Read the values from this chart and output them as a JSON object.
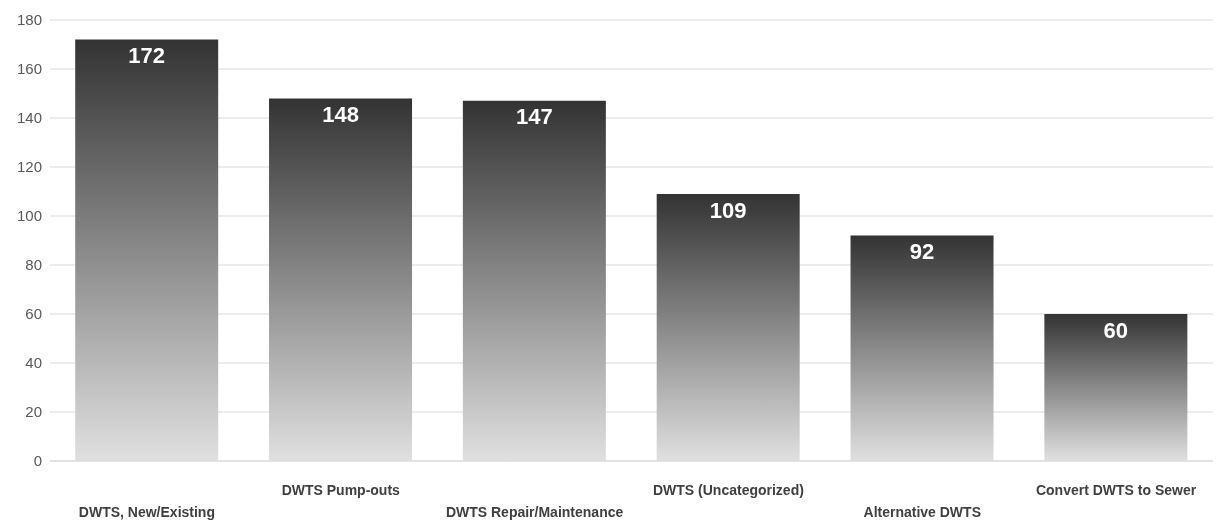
{
  "chart_data": {
    "type": "bar",
    "categories": [
      "DWTS, New/Existing",
      "DWTS Pump-outs",
      "DWTS Repair/Maintenance",
      "DWTS (Uncategorized)",
      "Alternative DWTS",
      "Convert DWTS to Sewer"
    ],
    "values": [
      172,
      148,
      147,
      109,
      92,
      60
    ],
    "color": "#333333",
    "ylim": [
      0,
      180
    ],
    "yticks": [
      0,
      20,
      40,
      60,
      80,
      100,
      120,
      140,
      160,
      180
    ],
    "grid": "y",
    "data_labels": true
  }
}
